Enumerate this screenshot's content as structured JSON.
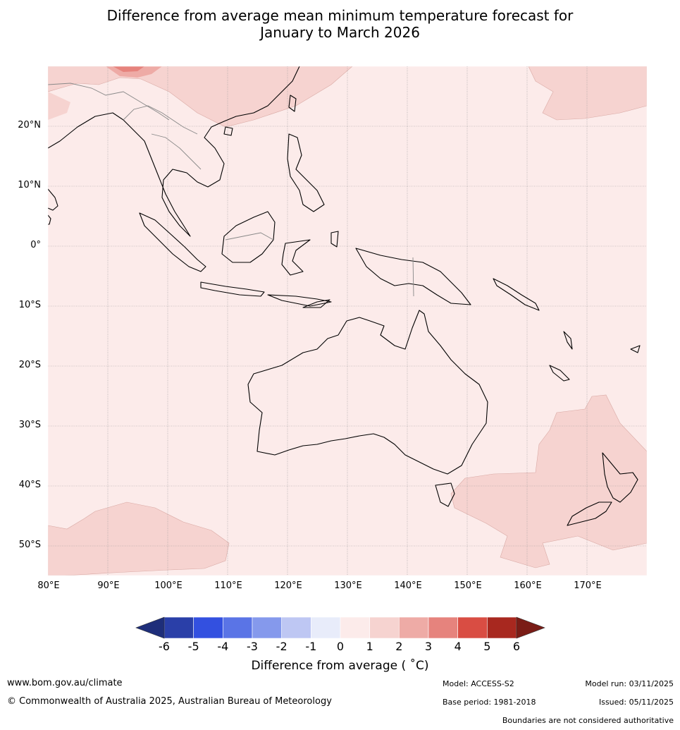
{
  "title_line1": "Difference from average mean minimum temperature forecast for",
  "title_line2": "January to March 2026",
  "lat_labels": [
    "20°N",
    "10°N",
    "0°",
    "10°S",
    "20°S",
    "30°S",
    "40°S",
    "50°S"
  ],
  "lon_labels": [
    "80°E",
    "90°E",
    "100°E",
    "110°E",
    "120°E",
    "130°E",
    "140°E",
    "150°E",
    "160°E",
    "170°E"
  ],
  "colorbar": {
    "ticks": [
      "-6",
      "-5",
      "-4",
      "-3",
      "-2",
      "-1",
      "0",
      "1",
      "2",
      "3",
      "4",
      "5",
      "6"
    ],
    "colors": [
      "#2a3fa8",
      "#3350e0",
      "#5a74e6",
      "#8599ec",
      "#bec7f3",
      "#e8ecfa",
      "#fcebea",
      "#f6d3d0",
      "#eeaba6",
      "#e6837d",
      "#d94d43",
      "#a8281f"
    ],
    "min_color": "#1e2e7a",
    "max_color": "#7a1c16",
    "label": "Difference from average ( ˚C)"
  },
  "footer": {
    "url": "www.bom.gov.au/climate",
    "copyright": "© Commonwealth of Australia 2025, Australian Bureau of Meteorology",
    "model": "Model: ACCESS-S2",
    "base_period": "Base period: 1981-2018",
    "model_run": "Model run: 03/11/2025",
    "issued": "Issued: 05/11/2025",
    "disclaimer": "Boundaries are not considered authoritative"
  },
  "map_colors": {
    "background": "#fcebea",
    "warm_1_2": "#f6d3d0",
    "warm_2_3": "#eeaba6",
    "warm_3_4": "#e6837d",
    "land_outline": "#000000",
    "border": "#888888",
    "grid": "#999999"
  }
}
